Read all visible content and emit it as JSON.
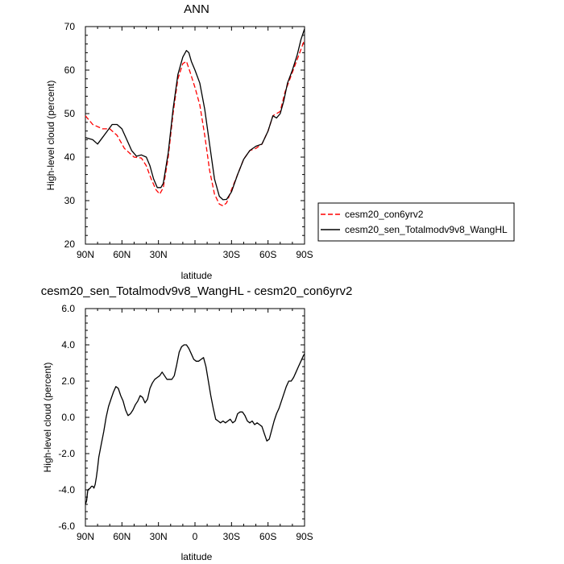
{
  "chart_data": [
    {
      "type": "line",
      "title": "ANN",
      "xlabel": "latitude",
      "ylabel": "High-level cloud (percent)",
      "xlim": [
        90,
        -90
      ],
      "ylim": [
        20,
        70
      ],
      "x_ticks": [
        90,
        60,
        30,
        0,
        -30,
        -60,
        -90
      ],
      "x_tick_labels": [
        "90N",
        "60N",
        "30N",
        "",
        "30S",
        "60S",
        "90S"
      ],
      "y_ticks": [
        20,
        30,
        40,
        50,
        60,
        70
      ],
      "y_tick_labels": [
        "20",
        "30",
        "40",
        "50",
        "60",
        "70"
      ],
      "legend_position": "right",
      "series": [
        {
          "name": "cesm20_con6yrv2",
          "color": "#ff0000",
          "dash": "dashed",
          "x": [
            90,
            84,
            76,
            70,
            64,
            58,
            50,
            44,
            40,
            36,
            32,
            29,
            26,
            22,
            18,
            14,
            10,
            7,
            4,
            0,
            -4,
            -8,
            -12,
            -16,
            -20,
            -23,
            -26,
            -30,
            -35,
            -40,
            -45,
            -50,
            -55,
            -60,
            -64,
            -67,
            -70,
            -74,
            -78,
            -82,
            -86,
            -90
          ],
          "y": [
            49.5,
            47.5,
            46.5,
            46.5,
            45,
            42,
            40,
            39.8,
            38,
            35,
            32.5,
            31.5,
            33,
            40,
            50,
            58,
            61.5,
            62,
            59.5,
            56,
            52,
            45,
            37,
            31.5,
            29.2,
            28.8,
            29.5,
            32.5,
            36,
            39.5,
            41.5,
            42,
            43,
            46,
            49.5,
            50,
            50.5,
            55,
            58,
            61,
            64,
            67
          ]
        },
        {
          "name": "cesm20_sen_Totalmodv9v8_WangHL",
          "color": "#000000",
          "dash": "solid",
          "x": [
            90,
            84,
            80,
            76,
            72,
            68,
            64,
            60,
            56,
            52,
            48,
            44,
            40,
            37,
            34,
            31,
            28,
            26,
            22,
            18,
            14,
            10,
            7,
            5,
            3,
            0,
            -4,
            -8,
            -12,
            -16,
            -20,
            -23,
            -26,
            -30,
            -35,
            -40,
            -45,
            -50,
            -55,
            -60,
            -64,
            -67,
            -70,
            -73,
            -76,
            -80,
            -84,
            -87,
            -90
          ],
          "y": [
            44.5,
            44,
            43,
            44.5,
            46,
            47.5,
            47.5,
            46.5,
            44,
            41.5,
            40.2,
            40.5,
            40,
            38,
            35,
            33,
            33,
            34,
            41,
            51,
            59,
            63,
            64.5,
            64,
            62,
            60,
            57,
            51,
            43,
            35,
            31,
            30.2,
            30.3,
            32,
            36,
            39.5,
            41.5,
            42.5,
            43,
            46,
            49.5,
            49,
            50,
            53,
            57,
            60,
            63.5,
            67,
            69.5
          ]
        }
      ]
    },
    {
      "type": "line",
      "title": "cesm20_sen_Totalmodv9v8_WangHL - cesm20_con6yrv2",
      "xlabel": "latitude",
      "ylabel": "High-level cloud (percent)",
      "xlim": [
        90,
        -90
      ],
      "ylim": [
        -6,
        6
      ],
      "x_ticks": [
        90,
        60,
        30,
        0,
        -30,
        -60,
        -90
      ],
      "x_tick_labels": [
        "90N",
        "60N",
        "30N",
        "0",
        "30S",
        "60S",
        "90S"
      ],
      "y_ticks": [
        -6,
        -4,
        -2,
        0,
        2,
        4,
        6
      ],
      "y_tick_labels": [
        "-6.0",
        "-4.0",
        "-2.0",
        "0.0",
        "2.0",
        "4.0",
        "6.0"
      ],
      "series": [
        {
          "color": "#000000",
          "dash": "solid",
          "x": [
            90,
            89,
            88,
            86,
            85,
            84,
            83,
            82,
            81,
            80,
            79,
            77,
            75,
            73,
            71,
            69,
            67,
            65,
            63,
            61,
            59,
            57,
            55,
            53,
            51,
            49,
            47,
            45,
            43,
            41,
            39,
            37,
            35,
            33,
            31,
            29,
            27,
            25,
            23,
            21,
            19,
            17,
            15,
            13,
            11,
            9,
            7,
            5,
            3,
            1,
            -1,
            -3,
            -5,
            -7,
            -9,
            -11,
            -13,
            -15,
            -17,
            -19,
            -21,
            -23,
            -25,
            -27,
            -29,
            -31,
            -33,
            -35,
            -37,
            -39,
            -41,
            -43,
            -45,
            -47,
            -49,
            -51,
            -53,
            -55,
            -57,
            -59,
            -61,
            -63,
            -65,
            -67,
            -69,
            -71,
            -73,
            -75,
            -77,
            -79,
            -81,
            -83,
            -85,
            -87,
            -89,
            -90
          ],
          "y": [
            -4.8,
            -4.6,
            -4.0,
            -3.9,
            -3.8,
            -3.8,
            -3.9,
            -3.7,
            -3.3,
            -2.8,
            -2.2,
            -1.5,
            -0.8,
            0.0,
            0.6,
            1.0,
            1.4,
            1.7,
            1.6,
            1.2,
            0.9,
            0.4,
            0.1,
            0.2,
            0.4,
            0.7,
            0.9,
            1.2,
            1.1,
            0.8,
            1.0,
            1.6,
            1.9,
            2.1,
            2.2,
            2.3,
            2.5,
            2.3,
            2.1,
            2.1,
            2.1,
            2.3,
            2.9,
            3.6,
            3.9,
            4.0,
            4.0,
            3.8,
            3.5,
            3.2,
            3.1,
            3.1,
            3.2,
            3.3,
            2.8,
            2.0,
            1.2,
            0.5,
            -0.1,
            -0.2,
            -0.3,
            -0.2,
            -0.3,
            -0.2,
            -0.1,
            -0.3,
            -0.2,
            0.2,
            0.3,
            0.3,
            0.1,
            -0.2,
            -0.3,
            -0.2,
            -0.4,
            -0.3,
            -0.4,
            -0.5,
            -0.9,
            -1.3,
            -1.2,
            -0.7,
            -0.2,
            0.2,
            0.5,
            0.9,
            1.3,
            1.7,
            2.0,
            2.0,
            2.2,
            2.5,
            2.8,
            3.1,
            3.4,
            3.5
          ]
        }
      ]
    }
  ]
}
